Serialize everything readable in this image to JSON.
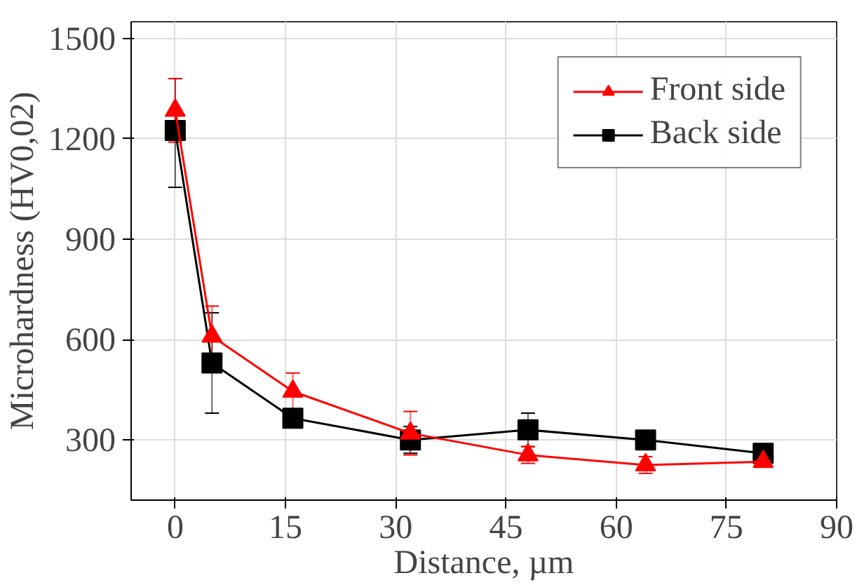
{
  "chart_data": {
    "type": "line",
    "xlabel": "Distance, µm",
    "ylabel": "Microhardness (HV0,02)",
    "x": [
      0,
      5,
      16,
      32,
      48,
      64,
      80
    ],
    "series": [
      {
        "name": "Front side",
        "color": "#ff0000",
        "marker": "triangle",
        "values": [
          1285,
          610,
          445,
          320,
          255,
          225,
          235
        ],
        "errors": [
          95,
          90,
          55,
          65,
          25,
          25,
          15
        ]
      },
      {
        "name": "Back side",
        "color": "#000000",
        "marker": "square",
        "values": [
          1225,
          530,
          365,
          300,
          330,
          300,
          260
        ],
        "errors": [
          [
            1055,
            1380
          ],
          [
            380,
            680
          ],
          25,
          40,
          50,
          20,
          15
        ]
      }
    ],
    "xlim": [
      -6,
      90
    ],
    "ylim": [
      120,
      1550
    ],
    "xticks": [
      0,
      15,
      30,
      45,
      60,
      75,
      90
    ],
    "yticks": [
      300,
      600,
      900,
      1200,
      1500
    ],
    "grid": true,
    "legend": "top right"
  }
}
